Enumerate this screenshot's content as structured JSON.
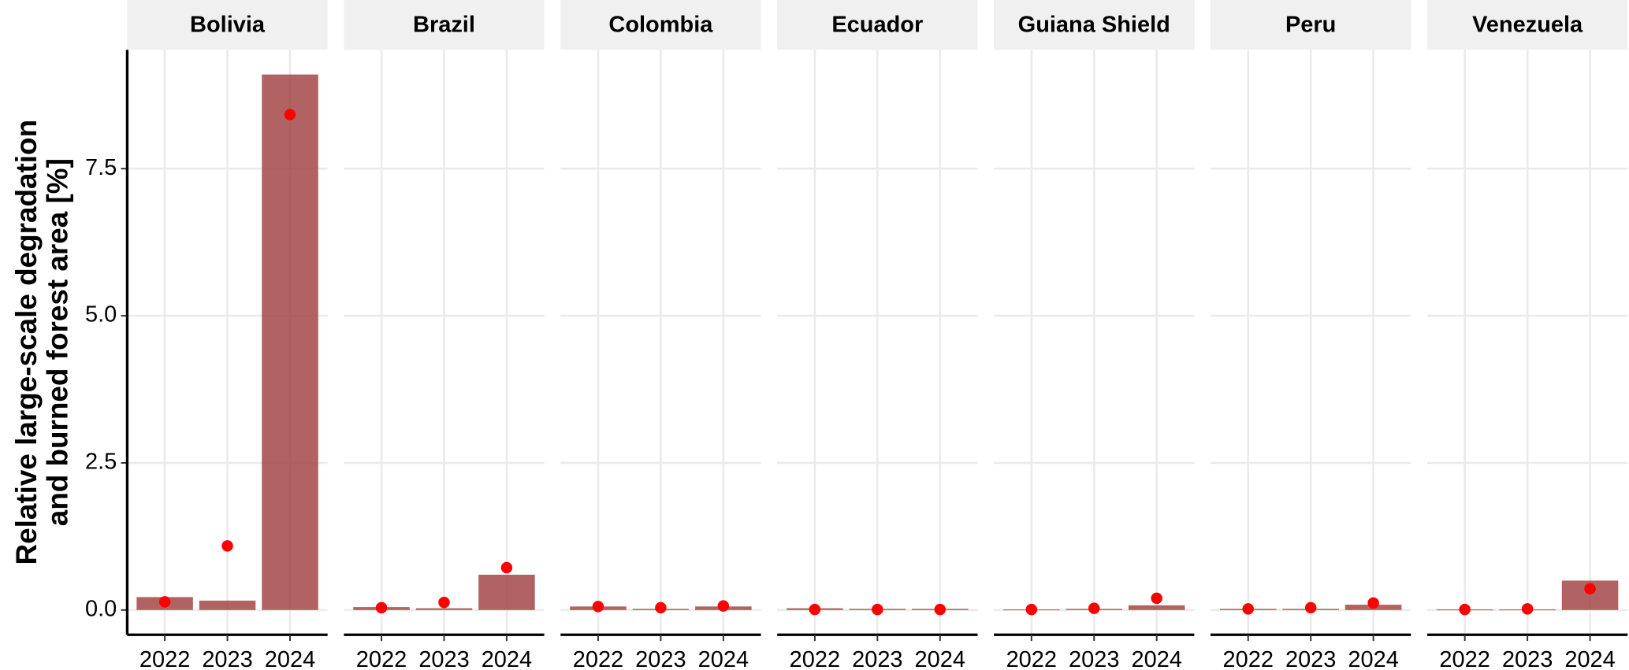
{
  "chart_data": {
    "type": "faceted-bar-point",
    "ylabel": [
      "Relative large-scale degradation",
      "and burned forest area [%]"
    ],
    "categories": [
      "2022",
      "2023",
      "2024"
    ],
    "ylim": [
      -0.42,
      9.52
    ],
    "yticks": [
      {
        "value": 0,
        "label": "0.0"
      },
      2.5,
      {
        "value": 5,
        "label": "5.0"
      },
      7.5
    ],
    "grid": true,
    "bar_color": "#a34848",
    "point_color": "#ff0000",
    "panels": [
      {
        "label": "Bolivia",
        "bar_values": [
          0.22,
          0.16,
          9.1
        ],
        "point_values": [
          0.14,
          1.09,
          8.42
        ]
      },
      {
        "label": "Brazil",
        "bar_values": [
          0.05,
          0.03,
          0.6
        ],
        "point_values": [
          0.04,
          0.13,
          0.72
        ]
      },
      {
        "label": "Colombia",
        "bar_values": [
          0.06,
          0.02,
          0.06
        ],
        "point_values": [
          0.06,
          0.04,
          0.07
        ]
      },
      {
        "label": "Ecuador",
        "bar_values": [
          0.03,
          0.02,
          0.02
        ],
        "point_values": [
          0.01,
          0.01,
          0.01
        ]
      },
      {
        "label": "Guiana Shield",
        "bar_values": [
          0.01,
          0.02,
          0.08
        ],
        "point_values": [
          0.01,
          0.03,
          0.2
        ]
      },
      {
        "label": "Peru",
        "bar_values": [
          0.02,
          0.02,
          0.09
        ],
        "point_values": [
          0.02,
          0.04,
          0.12
        ]
      },
      {
        "label": "Venezuela",
        "bar_values": [
          0.01,
          0.01,
          0.5
        ],
        "point_values": [
          0.01,
          0.02,
          0.36
        ]
      }
    ]
  }
}
